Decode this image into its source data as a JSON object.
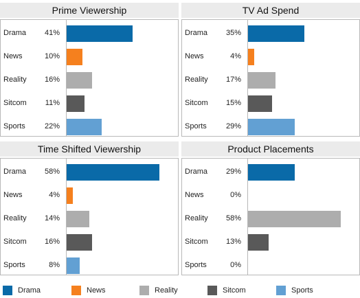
{
  "colors": {
    "Drama": "#0a6aa8",
    "News": "#f5801e",
    "Reality": "#adadad",
    "Sitcom": "#595959",
    "Sports": "#62a0d3"
  },
  "legend": [
    "Drama",
    "News",
    "Reality",
    "Sitcom",
    "Sports"
  ],
  "chart_data": [
    {
      "type": "bar",
      "title": "Prime Viewership",
      "categories": [
        "Drama",
        "News",
        "Reality",
        "Sitcom",
        "Sports"
      ],
      "values": [
        41,
        10,
        16,
        11,
        22
      ],
      "labels": [
        "41%",
        "10%",
        "16%",
        "11%",
        "22%"
      ],
      "xlim": [
        0,
        60
      ]
    },
    {
      "type": "bar",
      "title": "TV Ad Spend",
      "categories": [
        "Drama",
        "News",
        "Reality",
        "Sitcom",
        "Sports"
      ],
      "values": [
        35,
        4,
        17,
        15,
        29
      ],
      "labels": [
        "35%",
        "4%",
        "17%",
        "15%",
        "29%"
      ],
      "xlim": [
        0,
        60
      ]
    },
    {
      "type": "bar",
      "title": "Time Shifted Viewership",
      "categories": [
        "Drama",
        "News",
        "Reality",
        "Sitcom",
        "Sports"
      ],
      "values": [
        58,
        4,
        14,
        16,
        8
      ],
      "labels": [
        "58%",
        "4%",
        "14%",
        "16%",
        "8%"
      ],
      "xlim": [
        0,
        60
      ]
    },
    {
      "type": "bar",
      "title": "Product Placements",
      "categories": [
        "Drama",
        "News",
        "Reality",
        "Sitcom",
        "Sports"
      ],
      "values": [
        29,
        0,
        58,
        13,
        0
      ],
      "labels": [
        "29%",
        "0%",
        "58%",
        "13%",
        "0%"
      ],
      "xlim": [
        0,
        60
      ]
    }
  ]
}
